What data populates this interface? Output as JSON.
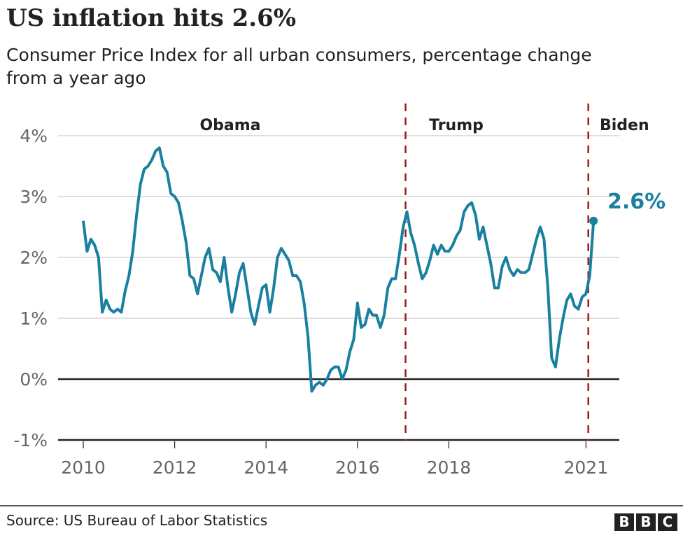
{
  "title": "US inflation hits 2.6%",
  "subtitle": "Consumer Price Index for all urban consumers, percentage change from a year ago",
  "source": "Source: US Bureau of Labor Statistics",
  "logo": "BBC",
  "colors": {
    "line": "#1a80a0",
    "label": "#1a80a0",
    "president_marker": "#a01c14",
    "zero_line": "#222222",
    "grid": "#cccccc",
    "tick_text": "#666666"
  },
  "chart_data": {
    "type": "line",
    "title": "US inflation hits 2.6%",
    "xlabel": "",
    "ylabel": "",
    "ylim": [
      -1,
      4
    ],
    "xlim": [
      "2009-08",
      "2021-08"
    ],
    "grid": true,
    "y_ticks": [
      {
        "value": 4,
        "label": "4%"
      },
      {
        "value": 3,
        "label": "3%"
      },
      {
        "value": 2,
        "label": "2%"
      },
      {
        "value": 1,
        "label": "1%"
      },
      {
        "value": 0,
        "label": "0%"
      },
      {
        "value": -1,
        "label": "-1%"
      }
    ],
    "x_ticks": [
      {
        "value": 2010,
        "label": "2010"
      },
      {
        "value": 2012,
        "label": "2012"
      },
      {
        "value": 2014,
        "label": "2014"
      },
      {
        "value": 2016,
        "label": "2016"
      },
      {
        "value": 2018,
        "label": "2018"
      },
      {
        "value": 2021,
        "label": "2021"
      }
    ],
    "series": [
      {
        "values_by_year": {
          "2010": [
            2.6,
            2.1,
            2.3,
            2.2,
            2.0,
            1.1,
            1.3,
            1.15,
            1.1,
            1.15,
            1.1,
            1.45
          ],
          "2011": [
            1.7,
            2.1,
            2.7,
            3.2,
            3.45,
            3.5,
            3.6,
            3.75,
            3.8,
            3.5,
            3.4,
            3.05
          ],
          "2012": [
            3.0,
            2.9,
            2.6,
            2.25,
            1.7,
            1.65,
            1.4,
            1.7,
            2.0,
            2.15,
            1.8,
            1.75
          ],
          "2013": [
            1.6,
            2.0,
            1.5,
            1.1,
            1.4,
            1.75,
            1.9,
            1.5,
            1.1,
            0.9,
            1.2,
            1.5
          ],
          "2014": [
            1.55,
            1.1,
            1.5,
            2.0,
            2.15,
            2.05,
            1.95,
            1.7,
            1.7,
            1.6,
            1.25,
            0.7
          ],
          "2015": [
            -0.2,
            -0.1,
            -0.05,
            -0.1,
            0.0,
            0.15,
            0.2,
            0.2,
            0.0,
            0.15,
            0.45,
            0.65
          ],
          "2016": [
            1.25,
            0.85,
            0.9,
            1.15,
            1.05,
            1.05,
            0.85,
            1.05,
            1.5,
            1.65,
            1.65,
            2.05
          ],
          "2017": [
            2.5,
            2.75,
            2.4,
            2.2,
            1.9,
            1.65,
            1.75,
            1.95,
            2.2,
            2.05,
            2.2,
            2.1
          ],
          "2018": [
            2.1,
            2.2,
            2.35,
            2.45,
            2.75,
            2.85,
            2.9,
            2.7,
            2.3,
            2.5,
            2.2,
            1.9
          ],
          "2019": [
            1.5,
            1.5,
            1.85,
            2.0,
            1.8,
            1.7,
            1.8,
            1.75,
            1.75,
            1.8,
            2.05,
            2.3
          ],
          "2020": [
            2.5,
            2.3,
            1.5,
            0.35,
            0.2,
            0.65,
            1.0,
            1.3,
            1.4,
            1.2,
            1.15,
            1.35
          ],
          "2021": [
            1.4,
            1.7,
            2.6
          ]
        }
      }
    ],
    "annotations": [
      {
        "label": "2.6%",
        "date": "2021-03",
        "value": 2.6
      },
      {
        "label": "Obama",
        "type": "period",
        "from": "2009-01-20",
        "to": "2017-01-20"
      },
      {
        "label": "Trump",
        "type": "period",
        "from": "2017-01-20",
        "to": "2021-01-20"
      },
      {
        "label": "Biden",
        "type": "period",
        "from": "2021-01-20"
      }
    ],
    "president_change_dates": [
      "2017-01-20",
      "2021-01-20"
    ]
  }
}
